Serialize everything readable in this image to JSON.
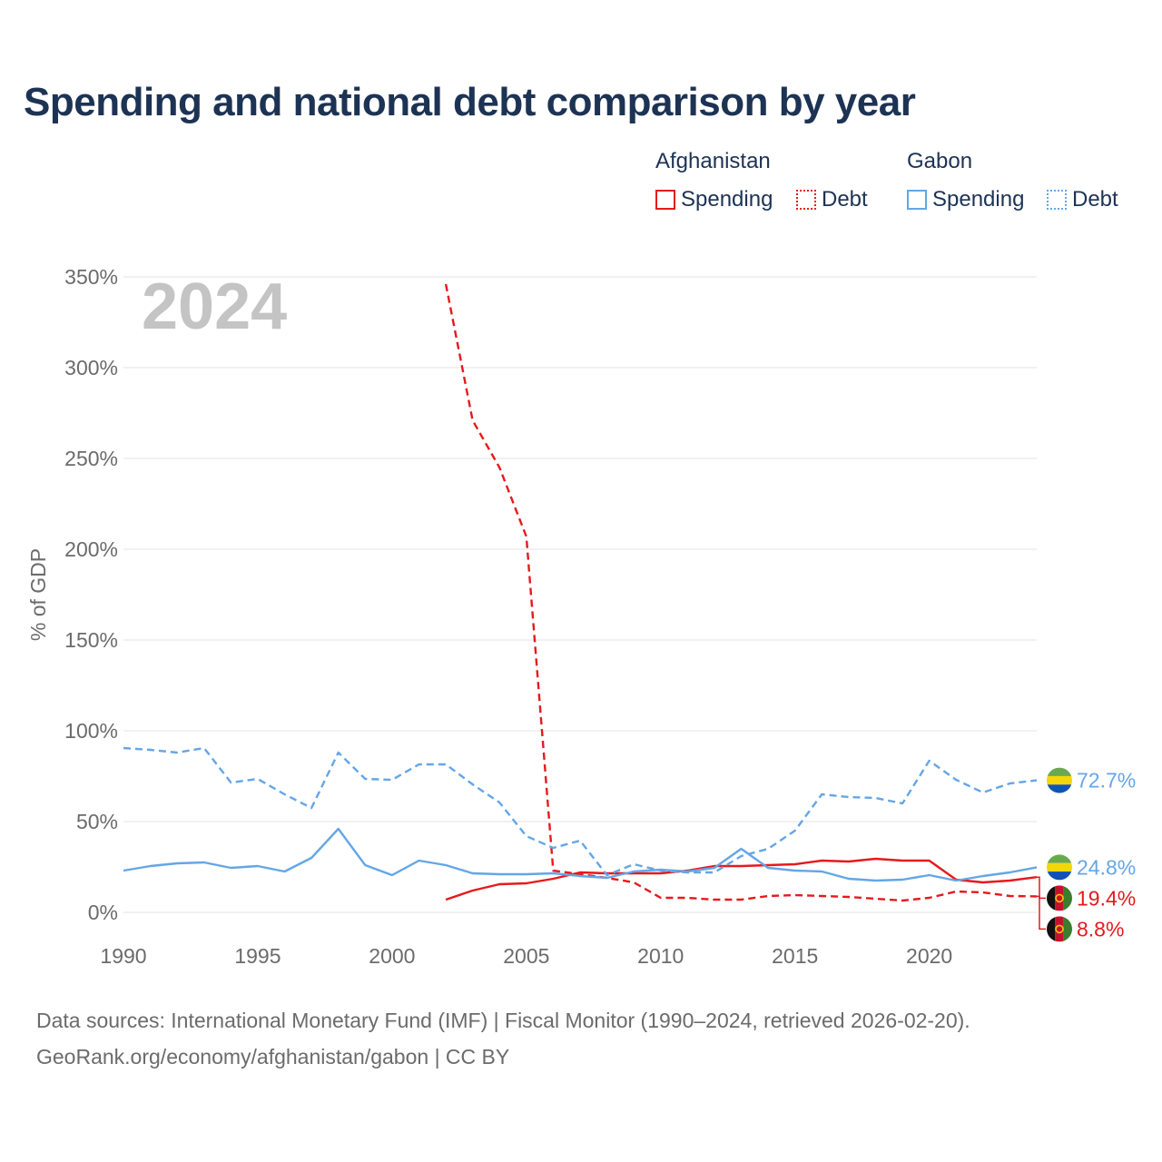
{
  "colors": {
    "afghanistan": "#e6191c",
    "gabon": "#64a6e6",
    "title": "#1d3354",
    "muted": "#6b6b6b",
    "year_watermark": "#c4c4c4"
  },
  "title": "Spending and national debt comparison by year",
  "legend": {
    "groups": [
      {
        "country": "Afghanistan",
        "spending_label": "Spending",
        "debt_label": "Debt"
      },
      {
        "country": "Gabon",
        "spending_label": "Spending",
        "debt_label": "Debt"
      }
    ]
  },
  "footer": {
    "source": "Data sources: International Monetary Fund (IMF) | Fiscal Monitor (1990–2024, retrieved 2026-02-20).",
    "attribution": "GeoRank.org/economy/afghanistan/gabon | CC BY"
  },
  "chart_data": {
    "type": "line",
    "title": "Spending and national debt comparison by year",
    "year_watermark": "2024",
    "ylabel": "% of GDP",
    "xlabel": "",
    "xlim": [
      1990,
      2024
    ],
    "ylim": [
      0,
      350
    ],
    "x_ticks": [
      1990,
      1995,
      2000,
      2005,
      2010,
      2015,
      2020
    ],
    "y_ticks": [
      0,
      50,
      100,
      150,
      200,
      250,
      300,
      350
    ],
    "y_tick_labels": [
      "0%",
      "50%",
      "100%",
      "150%",
      "200%",
      "250%",
      "300%",
      "350%"
    ],
    "grid": true,
    "series": [
      {
        "name": "Afghanistan Spending",
        "country": "Afghanistan",
        "kind": "spending",
        "color": "#e6191c",
        "dash": "solid",
        "x": [
          2002,
          2003,
          2004,
          2005,
          2006,
          2007,
          2008,
          2009,
          2010,
          2011,
          2012,
          2013,
          2014,
          2015,
          2016,
          2017,
          2018,
          2019,
          2020,
          2021,
          2022,
          2023,
          2024
        ],
        "values": [
          7,
          12,
          15.5,
          16,
          18.5,
          22,
          21.5,
          21.5,
          21.5,
          23,
          25.5,
          25.5,
          26,
          26.5,
          28.5,
          28,
          29.5,
          28.5,
          28.5,
          18,
          16.5,
          17.5,
          19.4
        ],
        "end_label": "19.4%"
      },
      {
        "name": "Afghanistan Debt",
        "country": "Afghanistan",
        "kind": "debt",
        "color": "#e6191c",
        "dash": "dashed",
        "x": [
          2002,
          2003,
          2004,
          2005,
          2006,
          2007,
          2008,
          2009,
          2010,
          2011,
          2012,
          2013,
          2014,
          2015,
          2016,
          2017,
          2018,
          2019,
          2020,
          2021,
          2022,
          2023,
          2024
        ],
        "values": [
          346,
          271,
          245,
          207,
          23,
          21,
          19,
          16.5,
          8,
          8,
          7,
          7,
          9,
          9.5,
          9,
          8.5,
          7.5,
          6.5,
          8,
          11.5,
          11,
          9,
          8.8
        ],
        "end_label": "8.8%"
      },
      {
        "name": "Gabon Spending",
        "country": "Gabon",
        "kind": "spending",
        "color": "#64a6e6",
        "dash": "solid",
        "x": [
          1990,
          1991,
          1992,
          1993,
          1994,
          1995,
          1996,
          1997,
          1998,
          1999,
          2000,
          2001,
          2002,
          2003,
          2004,
          2005,
          2006,
          2007,
          2008,
          2009,
          2010,
          2011,
          2012,
          2013,
          2014,
          2015,
          2016,
          2017,
          2018,
          2019,
          2020,
          2021,
          2022,
          2023,
          2024
        ],
        "values": [
          23,
          25.5,
          27,
          27.5,
          24.5,
          25.5,
          22.5,
          30,
          46,
          26,
          20.5,
          28.5,
          26,
          21.5,
          21,
          21,
          21.5,
          20,
          19,
          22.5,
          23.5,
          22.5,
          24.5,
          35,
          24.5,
          23,
          22.5,
          18.5,
          17.5,
          18,
          20.5,
          17.5,
          20,
          22,
          24.8
        ],
        "end_label": "24.8%"
      },
      {
        "name": "Gabon Debt",
        "country": "Gabon",
        "kind": "debt",
        "color": "#64a6e6",
        "dash": "dashed",
        "x": [
          1990,
          1991,
          1992,
          1993,
          1994,
          1995,
          1996,
          1997,
          1998,
          1999,
          2000,
          2001,
          2002,
          2003,
          2004,
          2005,
          2006,
          2007,
          2008,
          2009,
          2010,
          2011,
          2012,
          2013,
          2014,
          2015,
          2016,
          2017,
          2018,
          2019,
          2020,
          2021,
          2022,
          2023,
          2024
        ],
        "values": [
          90.5,
          89.5,
          88,
          90.5,
          71.5,
          73.5,
          65,
          57.5,
          88,
          73.5,
          73,
          81.5,
          81.5,
          70.5,
          60.5,
          42,
          35.5,
          39.5,
          20.5,
          26.5,
          23,
          22,
          22,
          31,
          35,
          45,
          65,
          63.5,
          63,
          60,
          83.5,
          73,
          66,
          71,
          72.7
        ],
        "end_label": "72.7%"
      }
    ]
  }
}
